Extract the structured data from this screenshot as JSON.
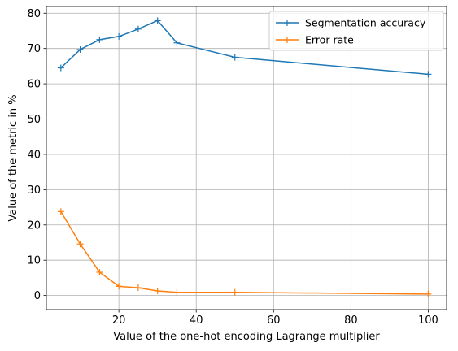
{
  "chart_data": {
    "type": "line",
    "title": "",
    "xlabel": "Value of the one-hot encoding Lagrange multiplier",
    "ylabel": "Value of the metric in %",
    "xlim": [
      1.25,
      104.75
    ],
    "ylim": [
      -4.0,
      81.9
    ],
    "xticks": [
      20,
      40,
      60,
      80,
      100
    ],
    "yticks": [
      0,
      10,
      20,
      30,
      40,
      50,
      60,
      70,
      80
    ],
    "grid": true,
    "legend": "top-right",
    "series": [
      {
        "name": "Segmentation accuracy",
        "color": "#1f77b4",
        "marker": "plus",
        "x": [
          5,
          10,
          15,
          20,
          25,
          30,
          35,
          50,
          100
        ],
        "y": [
          64.5,
          69.7,
          72.5,
          73.4,
          75.5,
          77.9,
          71.6,
          67.5,
          62.7
        ]
      },
      {
        "name": "Error rate",
        "color": "#ff7f0e",
        "marker": "plus",
        "x": [
          5,
          10,
          15,
          20,
          25,
          30,
          35,
          50,
          100
        ],
        "y": [
          23.8,
          14.6,
          6.6,
          2.6,
          2.2,
          1.3,
          0.9,
          0.9,
          0.4
        ]
      }
    ]
  }
}
